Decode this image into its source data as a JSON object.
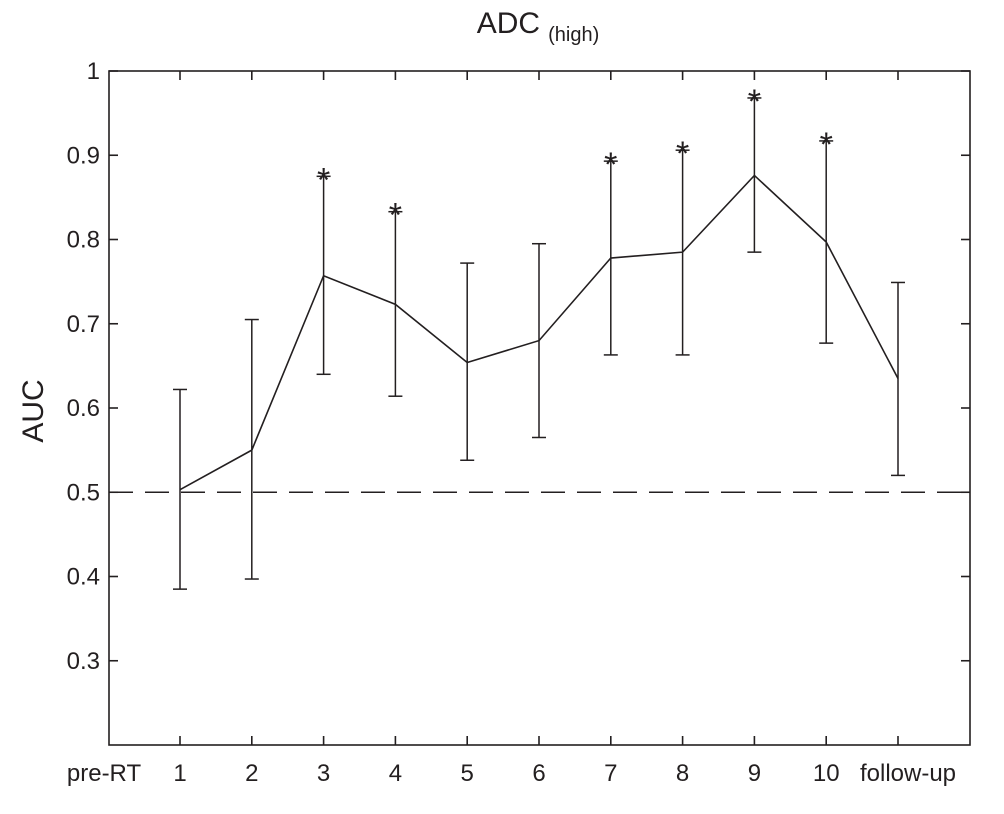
{
  "chart_data": {
    "type": "line",
    "title": "ADC",
    "title_subscript": "(high)",
    "xlabel": "",
    "ylabel": "AUC",
    "categories": [
      "pre-RT",
      "1",
      "2",
      "3",
      "4",
      "5",
      "6",
      "7",
      "8",
      "9",
      "10",
      "follow-up"
    ],
    "ylim": [
      0.2,
      1.0
    ],
    "yticks": [
      0.3,
      0.4,
      0.5,
      0.6,
      0.7,
      0.8,
      0.9,
      1
    ],
    "ytick_labels": [
      "0.3",
      "0.4",
      "0.5",
      "0.6",
      "0.7",
      "0.8",
      "0.9",
      "1"
    ],
    "grid": false,
    "reference_line": {
      "y": 0.5,
      "style": "dashed"
    },
    "series": [
      {
        "x": [
          "1",
          "2",
          "3",
          "4",
          "5",
          "6",
          "7",
          "8",
          "9",
          "10",
          "follow-up"
        ],
        "values": [
          0.503,
          0.55,
          0.757,
          0.723,
          0.654,
          0.68,
          0.778,
          0.785,
          0.876,
          0.797,
          0.635
        ],
        "error_lower": [
          0.385,
          0.397,
          0.64,
          0.614,
          0.538,
          0.565,
          0.663,
          0.663,
          0.785,
          0.677,
          0.52
        ],
        "error_upper": [
          0.622,
          0.705,
          0.875,
          0.833,
          0.772,
          0.795,
          0.893,
          0.906,
          0.968,
          0.917,
          0.749
        ],
        "significant": [
          false,
          false,
          true,
          true,
          false,
          false,
          true,
          true,
          true,
          true,
          false
        ],
        "significance_marker": "*"
      }
    ]
  }
}
